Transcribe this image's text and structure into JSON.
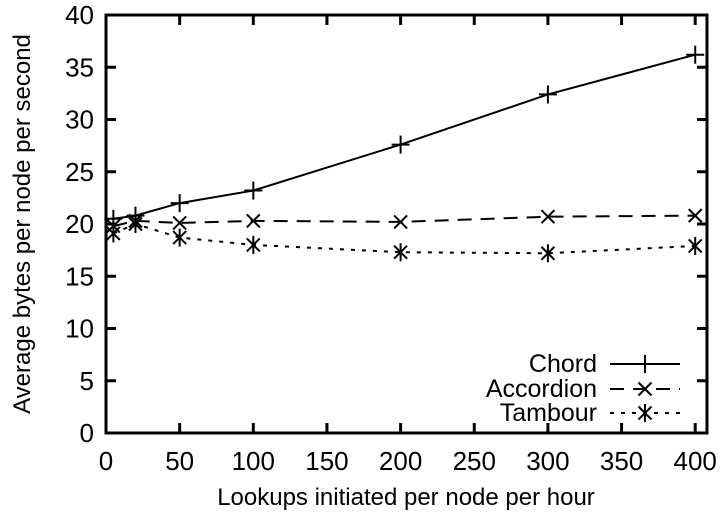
{
  "figure": {
    "background": "#ffffff",
    "foreground": "#000000"
  },
  "chart_data": {
    "type": "line",
    "title": "",
    "xlabel": "Lookups initiated per node per hour",
    "ylabel": "Average bytes per node per second",
    "xlim": [
      0,
      408
    ],
    "ylim": [
      0,
      40
    ],
    "xticks": [
      0,
      50,
      100,
      150,
      200,
      250,
      300,
      350,
      400
    ],
    "yticks": [
      0,
      5,
      10,
      15,
      20,
      25,
      30,
      35,
      40
    ],
    "grid": false,
    "legend_position": "inside-bottom-right",
    "x": [
      5,
      20,
      50,
      100,
      200,
      300,
      400
    ],
    "series": [
      {
        "name": "Chord",
        "style": "solid",
        "marker": "plus",
        "color": "#000000",
        "values": [
          20.5,
          20.8,
          22.0,
          23.2,
          27.6,
          32.4,
          36.2
        ]
      },
      {
        "name": "Accordion",
        "style": "dashed",
        "marker": "cross",
        "color": "#000000",
        "values": [
          19.8,
          20.3,
          20.1,
          20.3,
          20.2,
          20.7,
          20.8
        ]
      },
      {
        "name": "Tambour",
        "style": "dotted",
        "marker": "asterisk",
        "color": "#000000",
        "values": [
          19.1,
          20.0,
          18.7,
          18.0,
          17.3,
          17.2,
          17.9
        ]
      }
    ]
  }
}
